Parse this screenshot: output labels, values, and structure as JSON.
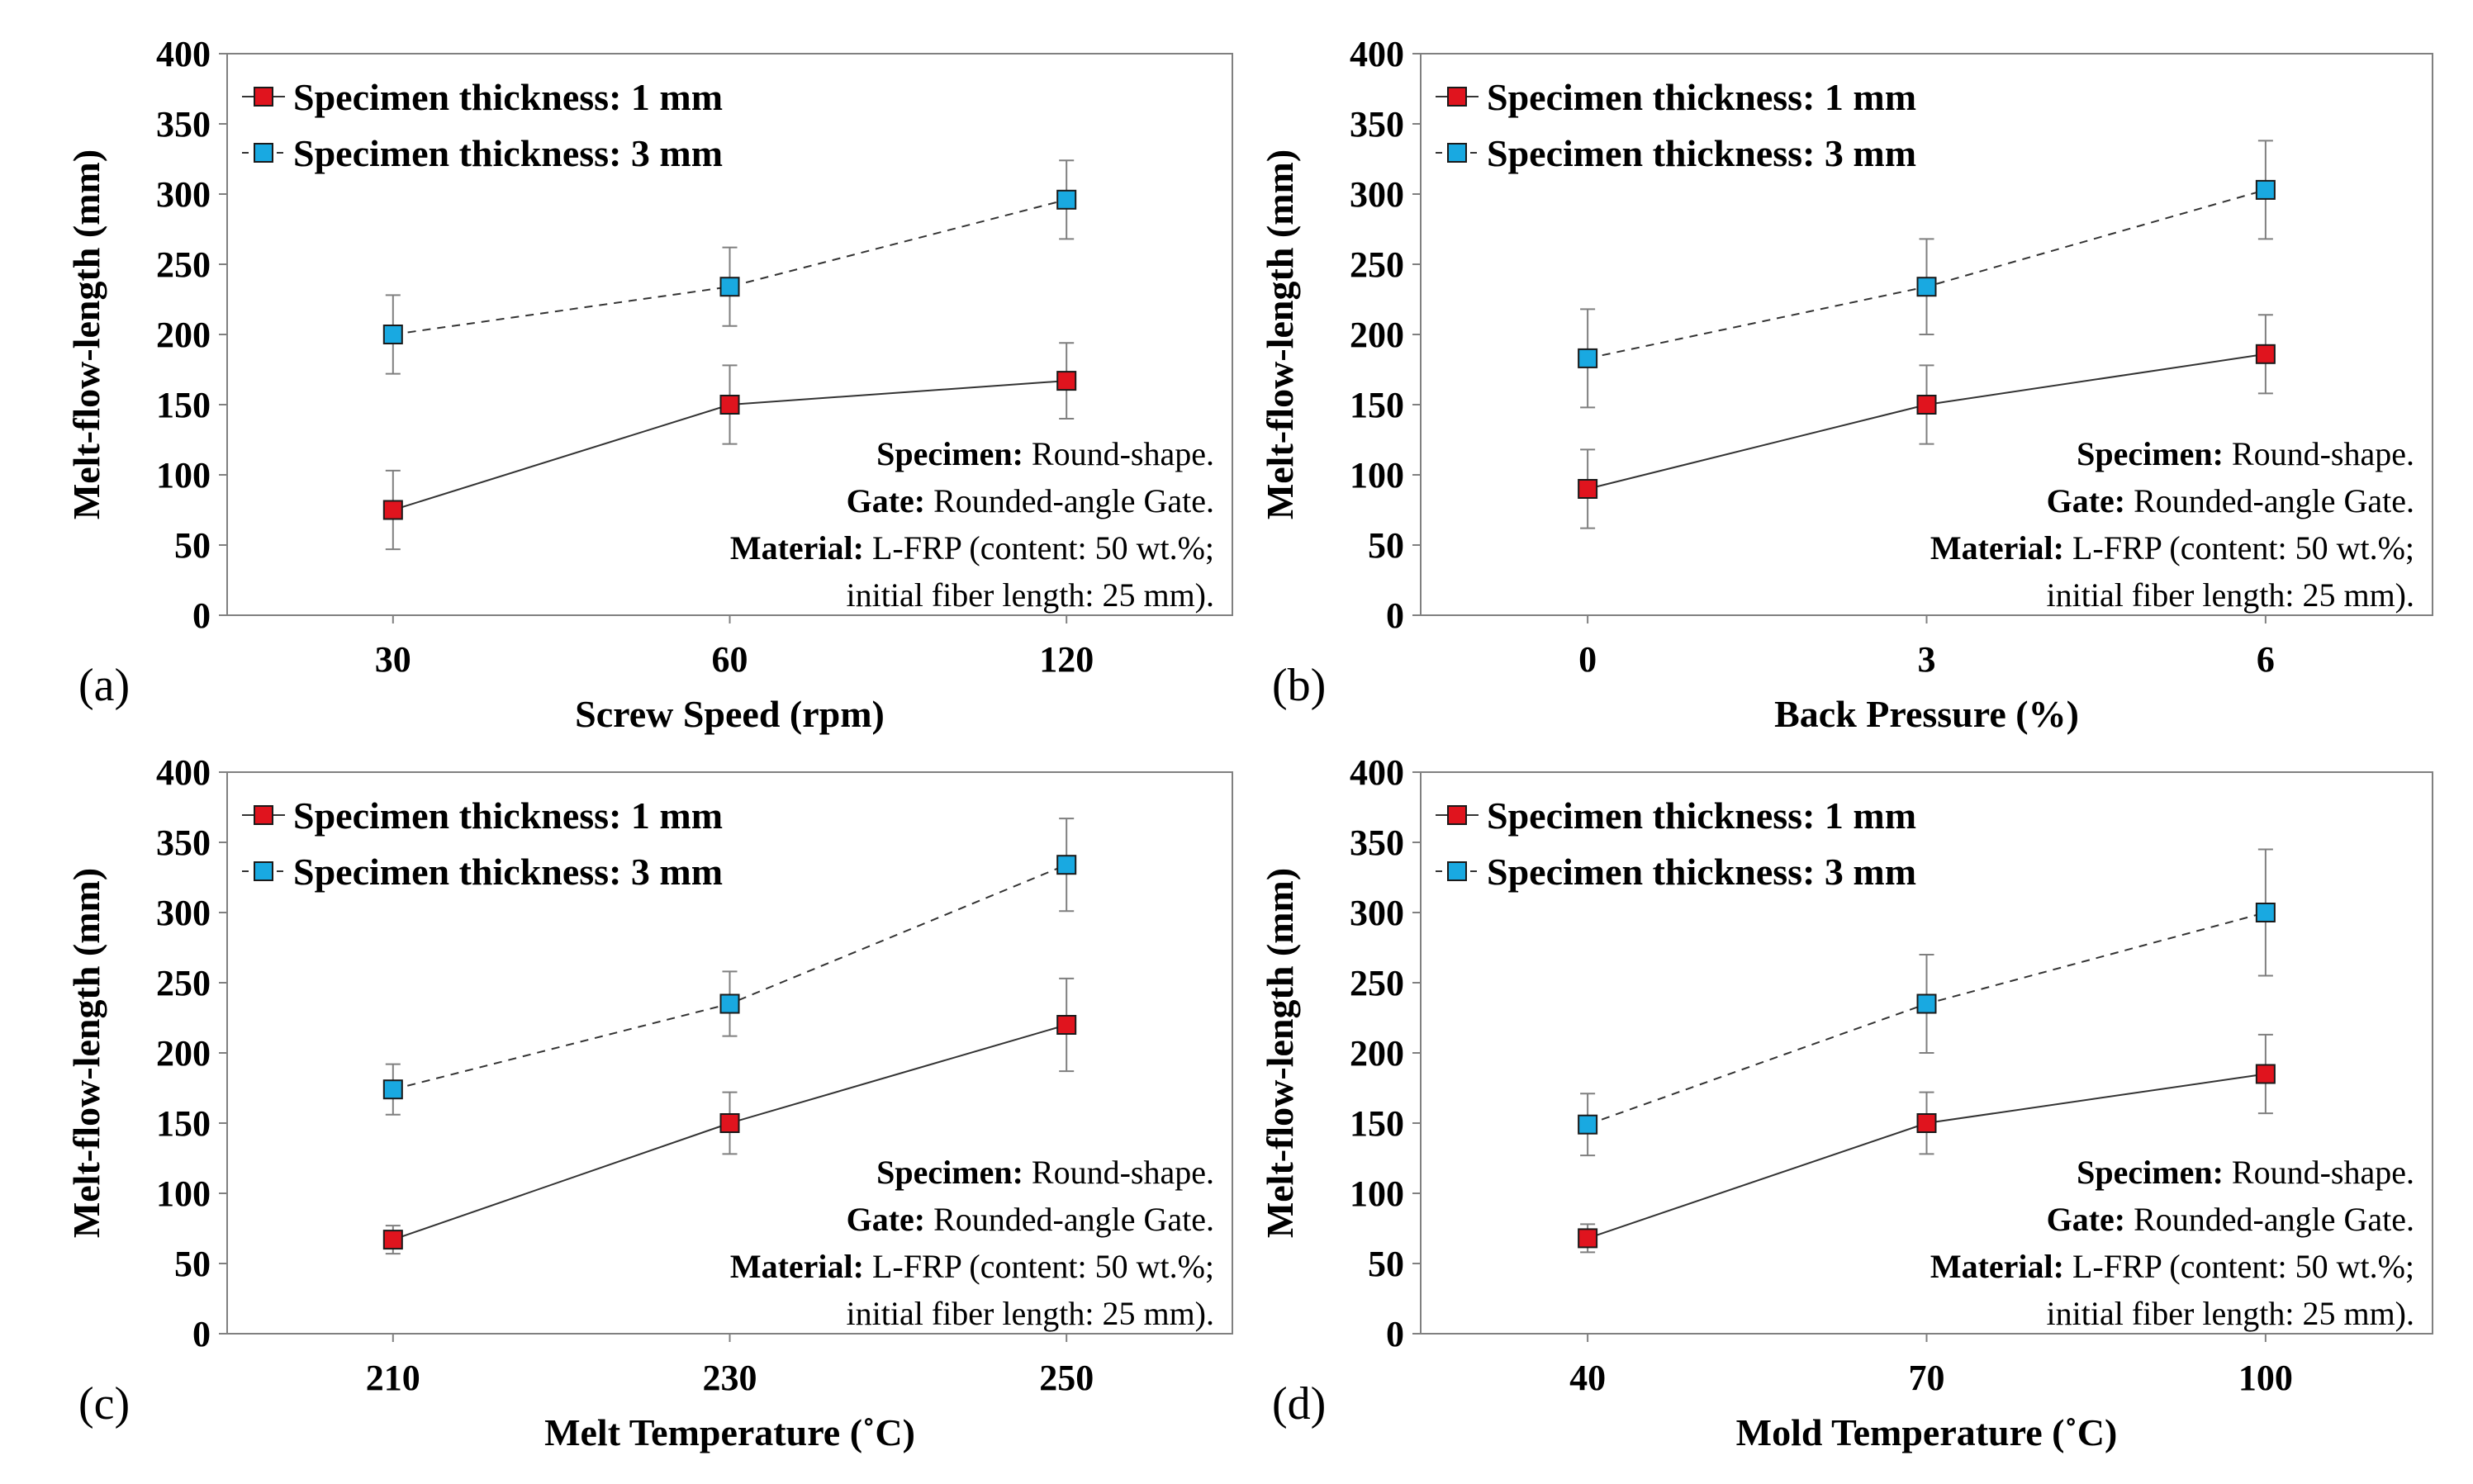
{
  "chart_data": [
    {
      "type": "line",
      "panel_label": "(a)",
      "xlabel": "Screw Speed (rpm)",
      "ylabel": "Melt-flow-length (mm)",
      "ylim": [
        0,
        400
      ],
      "yticks": [
        "0",
        "50",
        "100",
        "150",
        "200",
        "250",
        "300",
        "350",
        "400"
      ],
      "categories": [
        "30",
        "60",
        "120"
      ],
      "series": [
        {
          "name": "Specimen thickness: 1 mm",
          "color": "#e0141e",
          "line": "solid",
          "values": [
            75,
            150,
            167
          ],
          "errors": [
            28,
            28,
            27
          ]
        },
        {
          "name": "Specimen thickness: 3 mm",
          "color": "#19a9e1",
          "line": "dashed",
          "values": [
            200,
            234,
            296
          ],
          "errors": [
            28,
            28,
            28
          ]
        }
      ],
      "notes": [
        {
          "bold": "Specimen:",
          "text": "Round-shape."
        },
        {
          "bold": "Gate:",
          "text": "Rounded-angle Gate."
        },
        {
          "bold": "Material:",
          "text": "L-FRP (content: 50 wt.%;"
        },
        {
          "bold": "",
          "text": "initial fiber length: 25 mm)."
        }
      ]
    },
    {
      "type": "line",
      "panel_label": "(b)",
      "xlabel": "Back Pressure (%)",
      "ylabel": "Melt-flow-length (mm)",
      "ylim": [
        0,
        400
      ],
      "yticks": [
        "0",
        "50",
        "100",
        "150",
        "200",
        "250",
        "300",
        "350",
        "400"
      ],
      "categories": [
        "0",
        "3",
        "6"
      ],
      "series": [
        {
          "name": "Specimen thickness: 1 mm",
          "color": "#e0141e",
          "line": "solid",
          "values": [
            90,
            150,
            186
          ],
          "errors": [
            28,
            28,
            28
          ]
        },
        {
          "name": "Specimen thickness: 3 mm",
          "color": "#19a9e1",
          "line": "dashed",
          "values": [
            183,
            234,
            303
          ],
          "errors": [
            35,
            34,
            35
          ]
        }
      ],
      "notes": [
        {
          "bold": "Specimen:",
          "text": "Round-shape."
        },
        {
          "bold": "Gate:",
          "text": "Rounded-angle Gate."
        },
        {
          "bold": "Material:",
          "text": "L-FRP (content: 50 wt.%;"
        },
        {
          "bold": "",
          "text": "initial fiber length: 25 mm)."
        }
      ]
    },
    {
      "type": "line",
      "panel_label": "(c)",
      "xlabel": "Melt Temperature (˚C)",
      "ylabel": "Melt-flow-length (mm)",
      "ylim": [
        0,
        400
      ],
      "yticks": [
        "0",
        "50",
        "100",
        "150",
        "200",
        "250",
        "300",
        "350",
        "400"
      ],
      "categories": [
        "210",
        "230",
        "250"
      ],
      "series": [
        {
          "name": "Specimen thickness: 1 mm",
          "color": "#e0141e",
          "line": "solid",
          "values": [
            67,
            150,
            220
          ],
          "errors": [
            10,
            22,
            33
          ]
        },
        {
          "name": "Specimen thickness: 3 mm",
          "color": "#19a9e1",
          "line": "dashed",
          "values": [
            174,
            235,
            334
          ],
          "errors": [
            18,
            23,
            33
          ]
        }
      ],
      "notes": [
        {
          "bold": "Specimen:",
          "text": "Round-shape."
        },
        {
          "bold": "Gate:",
          "text": "Rounded-angle Gate."
        },
        {
          "bold": "Material:",
          "text": "L-FRP (content: 50 wt.%;"
        },
        {
          "bold": "",
          "text": "initial fiber length: 25 mm)."
        }
      ]
    },
    {
      "type": "line",
      "panel_label": "(d)",
      "xlabel": "Mold Temperature (˚C)",
      "ylabel": "Melt-flow-length (mm)",
      "ylim": [
        0,
        400
      ],
      "yticks": [
        "0",
        "50",
        "100",
        "150",
        "200",
        "250",
        "300",
        "350",
        "400"
      ],
      "categories": [
        "40",
        "70",
        "100"
      ],
      "series": [
        {
          "name": "Specimen thickness: 1 mm",
          "color": "#e0141e",
          "line": "solid",
          "values": [
            68,
            150,
            185
          ],
          "errors": [
            10,
            22,
            28
          ]
        },
        {
          "name": "Specimen thickness: 3 mm",
          "color": "#19a9e1",
          "line": "dashed",
          "values": [
            149,
            235,
            300
          ],
          "errors": [
            22,
            35,
            45
          ]
        }
      ],
      "notes": [
        {
          "bold": "Specimen:",
          "text": "Round-shape."
        },
        {
          "bold": "Gate:",
          "text": "Rounded-angle Gate."
        },
        {
          "bold": "Material:",
          "text": "L-FRP (content: 50 wt.%;"
        },
        {
          "bold": "",
          "text": "initial fiber length: 25 mm)."
        }
      ]
    }
  ]
}
